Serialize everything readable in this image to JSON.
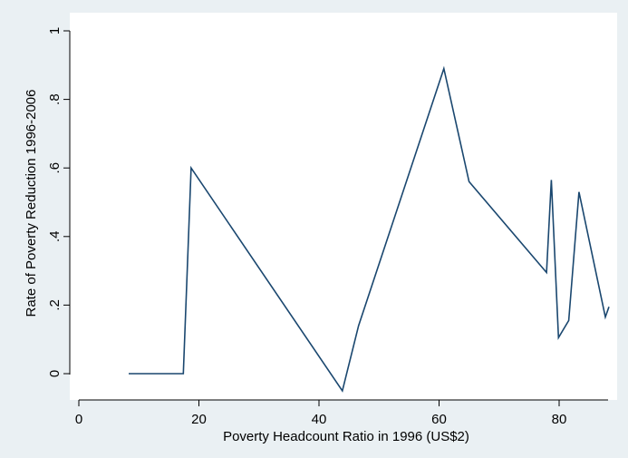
{
  "chart_data": {
    "type": "line",
    "title": "",
    "xlabel": "Poverty Headcount Ratio in 1996 (US$2)",
    "ylabel": "Rate of Poverty Reduction 1996-2006",
    "xlim": [
      0,
      90
    ],
    "ylim": [
      0,
      1
    ],
    "x_ticks": [
      0,
      20,
      40,
      60,
      80
    ],
    "x_tick_labels": [
      "0",
      "20",
      "40",
      "60",
      "80"
    ],
    "y_ticks": [
      0,
      0.2,
      0.4,
      0.6,
      0.8,
      1
    ],
    "y_tick_labels": [
      "0",
      ".2",
      ".4",
      ".6",
      ".8",
      "1"
    ],
    "grid": false,
    "legend": "none",
    "series": [
      {
        "color": "#1a476f",
        "x": [
          8.3,
          17.4,
          18.7,
          43.9,
          46.6,
          60.8,
          65.0,
          77.9,
          78.7,
          79.9,
          81.6,
          83.3,
          87.7,
          88.3
        ],
        "y": [
          0.0,
          0.0,
          0.6,
          -0.05,
          0.14,
          0.89,
          0.56,
          0.295,
          0.565,
          0.105,
          0.155,
          0.53,
          0.165,
          0.195
        ]
      }
    ]
  },
  "colors": {
    "page_background": "#eaf0f3",
    "plot_background": "#ffffff",
    "line": "#1a476f"
  }
}
